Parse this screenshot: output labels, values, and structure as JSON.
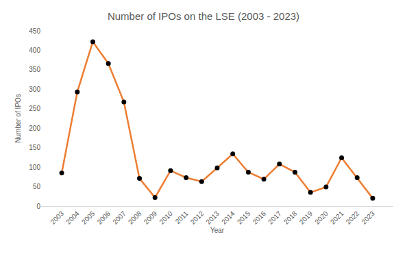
{
  "chart_data": {
    "type": "line",
    "title": "Number of IPOs on the LSE (2003 - 2023)",
    "x_label": "Year",
    "y_label": "Number of IPOs",
    "categories": [
      "2003",
      "2004",
      "2005",
      "2006",
      "2007",
      "2008",
      "2009",
      "2010",
      "2011",
      "2012",
      "2013",
      "2014",
      "2015",
      "2016",
      "2017",
      "2018",
      "2019",
      "2020",
      "2021",
      "2022",
      "2023"
    ],
    "values": [
      85,
      293,
      422,
      366,
      267,
      71,
      22,
      91,
      73,
      63,
      98,
      134,
      87,
      69,
      108,
      87,
      35,
      49,
      124,
      73,
      20
    ],
    "color": "#ed7d31",
    "marker": "circle",
    "ylim": [
      0,
      450
    ],
    "yticks": [
      0,
      50,
      100,
      150,
      200,
      250,
      300,
      350,
      400,
      450
    ],
    "grid": false
  }
}
